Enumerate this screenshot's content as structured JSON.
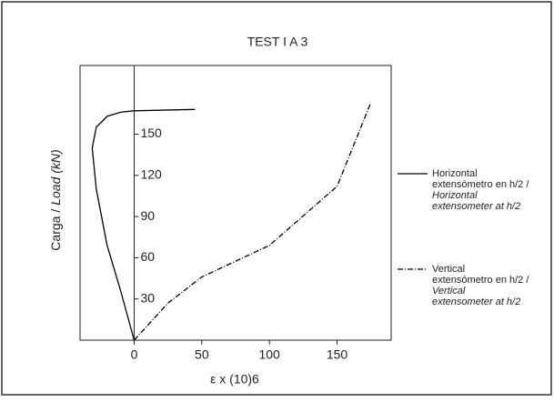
{
  "chart_data": {
    "type": "line",
    "title": "TEST I A 3",
    "x_label": "ε x (10)6",
    "y_label": [
      "Carga /",
      "Load (kN)"
    ],
    "xlim": [
      -40,
      190
    ],
    "xticks": [
      0,
      50,
      100,
      150
    ],
    "ylim": [
      0,
      200
    ],
    "yticks": [
      30,
      60,
      90,
      120,
      150
    ],
    "series": [
      {
        "name": [
          "Horizontal",
          "extensómetro en h/2 /",
          "Horizontal",
          "extensometer at h/2"
        ],
        "color": "#000000",
        "dash": "none",
        "x": [
          0,
          -10,
          -20,
          -28,
          -31,
          -28,
          -20,
          -10,
          0,
          45
        ],
        "values": [
          0,
          36,
          69,
          110,
          140,
          155,
          163,
          166,
          167,
          168
        ]
      },
      {
        "name": [
          "Vertical",
          "extensómetro en h/2 /",
          "Vertical",
          "extensometer at h/2"
        ],
        "color": "#000000",
        "dash": "6,2,1,2",
        "x": [
          0,
          25,
          50,
          100,
          150,
          175
        ],
        "values": [
          0,
          27,
          46,
          69,
          112,
          173
        ]
      }
    ]
  }
}
